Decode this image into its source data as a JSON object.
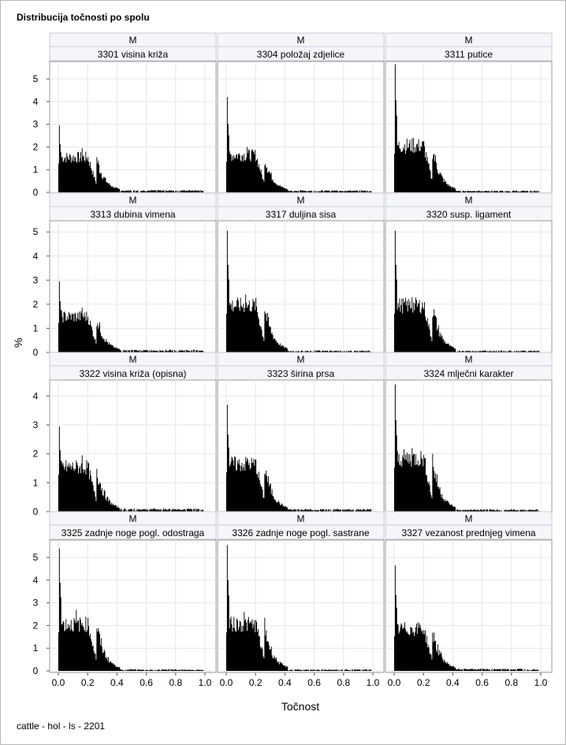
{
  "title": "Distribucija točnosti po spolu",
  "footnote": "cattle - hol - ls - 2201",
  "chart_data": {
    "type": "bar",
    "title": "Distribucija točnosti po spolu",
    "xlabel": "Točnost",
    "ylabel": "%",
    "xlim": [
      0,
      1
    ],
    "x_ticks": [
      "0.0",
      "0.2",
      "0.4",
      "0.6",
      "0.8",
      "1.0"
    ],
    "grid": true,
    "bin_width": 0.005,
    "panels": [
      {
        "group": "M",
        "trait": "3301 visina križa",
        "ylim": [
          0,
          5.7
        ],
        "y_ticks": [
          0,
          1,
          2,
          3,
          4,
          5
        ],
        "series": [
          {
            "name": "3301 visina križa",
            "peak": 2.95,
            "peak2": 1.95,
            "peak2_at": 0.16,
            "plateau": 1.5,
            "tail": 0.08
          }
        ]
      },
      {
        "group": "M",
        "trait": "3304 položaj zdjelice",
        "ylim": [
          0,
          5.7
        ],
        "y_ticks": [
          0,
          1,
          2,
          3,
          4,
          5
        ],
        "series": [
          {
            "name": "3304 položaj zdjelice",
            "peak": 4.2,
            "peak2": 2.0,
            "peak2_at": 0.14,
            "plateau": 1.6,
            "tail": 0.07
          }
        ]
      },
      {
        "group": "M",
        "trait": "3311 putice",
        "ylim": [
          0,
          5.7
        ],
        "y_ticks": [
          0,
          1,
          2,
          3,
          4,
          5
        ],
        "series": [
          {
            "name": "3311 putice",
            "peak": 5.65,
            "peak2": 2.4,
            "peak2_at": 0.13,
            "plateau": 2.0,
            "tail": 0.06
          }
        ]
      },
      {
        "group": "M",
        "trait": "3313 dubina vimena",
        "ylim": [
          0,
          5.4
        ],
        "y_ticks": [
          0,
          1,
          2,
          3,
          4,
          5
        ],
        "series": [
          {
            "name": "3313 dubina vimena",
            "peak": 2.95,
            "peak2": 1.85,
            "peak2_at": 0.16,
            "plateau": 1.45,
            "tail": 0.08
          }
        ]
      },
      {
        "group": "M",
        "trait": "3317 duljina sisa",
        "ylim": [
          0,
          5.4
        ],
        "y_ticks": [
          0,
          1,
          2,
          3,
          4,
          5
        ],
        "series": [
          {
            "name": "3317 duljina sisa",
            "peak": 5.05,
            "peak2": 2.4,
            "peak2_at": 0.13,
            "plateau": 1.9,
            "tail": 0.06
          }
        ]
      },
      {
        "group": "M",
        "trait": "3320 susp. ligament",
        "ylim": [
          0,
          5.4
        ],
        "y_ticks": [
          0,
          1,
          2,
          3,
          4,
          5
        ],
        "series": [
          {
            "name": "3320 susp. ligament",
            "peak": 5.05,
            "peak2": 2.3,
            "peak2_at": 0.12,
            "plateau": 1.9,
            "tail": 0.06
          }
        ]
      },
      {
        "group": "M",
        "trait": "3322 visina križa (opisna)",
        "ylim": [
          0,
          4.5
        ],
        "y_ticks": [
          0,
          1,
          2,
          3,
          4
        ],
        "series": [
          {
            "name": "3322 visina križa (opisna)",
            "peak": 2.95,
            "peak2": 1.95,
            "peak2_at": 0.16,
            "plateau": 1.5,
            "tail": 0.08
          }
        ]
      },
      {
        "group": "M",
        "trait": "3323 širina prsa",
        "ylim": [
          0,
          4.5
        ],
        "y_ticks": [
          0,
          1,
          2,
          3,
          4
        ],
        "series": [
          {
            "name": "3323 širina prsa",
            "peak": 3.7,
            "peak2": 1.85,
            "peak2_at": 0.14,
            "plateau": 1.6,
            "tail": 0.07
          }
        ]
      },
      {
        "group": "M",
        "trait": "3324 mlječni karakter",
        "ylim": [
          0,
          4.5
        ],
        "y_ticks": [
          0,
          1,
          2,
          3,
          4
        ],
        "series": [
          {
            "name": "3324 mlječni karakter",
            "peak": 4.4,
            "peak2": 2.2,
            "peak2_at": 0.12,
            "plateau": 1.8,
            "tail": 0.06
          }
        ]
      },
      {
        "group": "M",
        "trait": "3325 zadnje noge pogl. odostraga",
        "ylim": [
          0,
          5.7
        ],
        "y_ticks": [
          0,
          1,
          2,
          3,
          4,
          5
        ],
        "series": [
          {
            "name": "3325 zadnje noge pogl. odostraga",
            "peak": 5.4,
            "peak2": 2.7,
            "peak2_at": 0.12,
            "plateau": 2.0,
            "tail": 0.05
          }
        ]
      },
      {
        "group": "M",
        "trait": "3326 zadnje noge pogl. sastrane",
        "ylim": [
          0,
          5.7
        ],
        "y_ticks": [
          0,
          1,
          2,
          3,
          4,
          5
        ],
        "series": [
          {
            "name": "3326 zadnje noge pogl. sastrane",
            "peak": 5.55,
            "peak2": 2.6,
            "peak2_at": 0.12,
            "plateau": 2.0,
            "tail": 0.05
          }
        ]
      },
      {
        "group": "M",
        "trait": "3327 vezanost prednjeg vimena",
        "ylim": [
          0,
          5.7
        ],
        "y_ticks": [
          0,
          1,
          2,
          3,
          4,
          5
        ],
        "series": [
          {
            "name": "3327 vezanost prednjeg vimena",
            "peak": 4.65,
            "peak2": 2.1,
            "peak2_at": 0.17,
            "plateau": 1.8,
            "tail": 0.07
          }
        ]
      }
    ]
  }
}
